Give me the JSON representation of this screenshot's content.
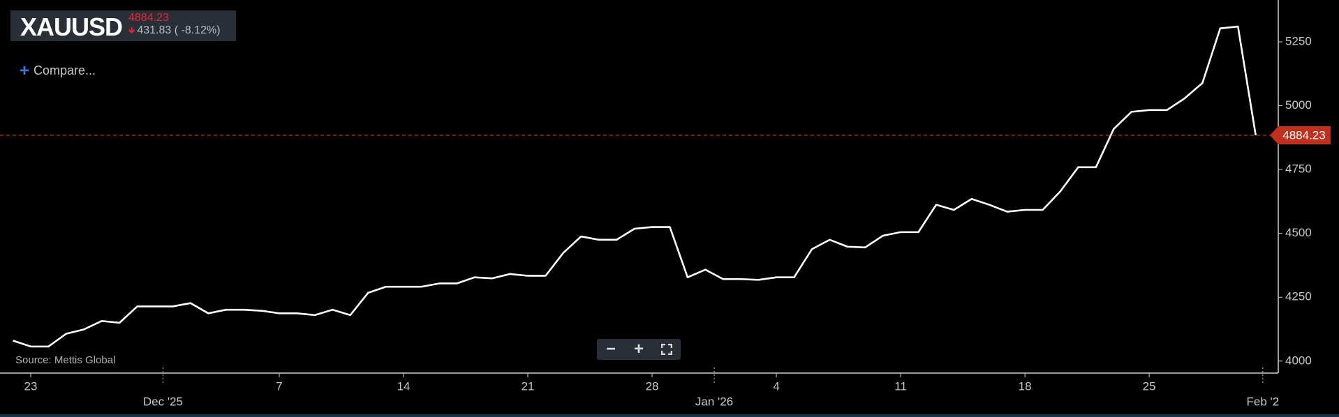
{
  "header": {
    "symbol": "XAUUSD",
    "price": "4884.23",
    "change": "431.83",
    "change_pct": "( -8.12%)",
    "compare": "Compare..."
  },
  "chart_data": {
    "type": "line",
    "source": "Source: Mettis Global",
    "x": [
      -1,
      0,
      1,
      2,
      3,
      4,
      5,
      6,
      7,
      8,
      9,
      10,
      11,
      12,
      13,
      14,
      15,
      16,
      17,
      18,
      19,
      20,
      21,
      22,
      23,
      24,
      25,
      26,
      27,
      28,
      29,
      30,
      31,
      32,
      33,
      34,
      35,
      36,
      37,
      38,
      39,
      40,
      41,
      42,
      43,
      44,
      45,
      46,
      47,
      48,
      49,
      50,
      51,
      52,
      53,
      54,
      55,
      56,
      57,
      58,
      59,
      60,
      61,
      62,
      63,
      64,
      65,
      66,
      67,
      68,
      69
    ],
    "series": [
      {
        "name": "XAUUSD",
        "color": "#ffffff",
        "values": [
          4080,
          4057,
          4057,
          4107,
          4124,
          4157,
          4150,
          4214,
          4214,
          4214,
          4227,
          4187,
          4201,
          4201,
          4197,
          4187,
          4187,
          4180,
          4201,
          4180,
          4267,
          4291,
          4291,
          4291,
          4304,
          4304,
          4328,
          4324,
          4341,
          4334,
          4334,
          4424,
          4488,
          4475,
          4475,
          4518,
          4525,
          4525,
          4328,
          4358,
          4321,
          4321,
          4318,
          4328,
          4328,
          4438,
          4475,
          4448,
          4445,
          4491,
          4505,
          4505,
          4612,
          4592,
          4635,
          4612,
          4585,
          4592,
          4592,
          4665,
          4759,
          4759,
          4909,
          4976,
          4983,
          4983,
          5029,
          5089,
          5303,
          5310,
          4884.23
        ]
      }
    ],
    "xlim": [
      -1.73,
      70.27
    ],
    "xticks": [
      {
        "value": 0,
        "label": "23"
      },
      {
        "value": 14,
        "label": "7"
      },
      {
        "value": 21,
        "label": "14"
      },
      {
        "value": 28,
        "label": "21"
      },
      {
        "value": 35,
        "label": "28"
      },
      {
        "value": 42,
        "label": "4"
      },
      {
        "value": 49,
        "label": "11"
      },
      {
        "value": 56,
        "label": "18"
      },
      {
        "value": 63,
        "label": "25"
      }
    ],
    "xticks_months": [
      {
        "value": 7.45,
        "label": "Dec '25"
      },
      {
        "value": 38.5,
        "label": "Jan '26"
      },
      {
        "value": 69.4,
        "label": "Feb '2"
      }
    ],
    "ylim": [
      3953,
      5414
    ],
    "yticks": [
      4000,
      4250,
      4500,
      4750,
      5000,
      5250
    ],
    "last_line_color": "#c0301e"
  }
}
